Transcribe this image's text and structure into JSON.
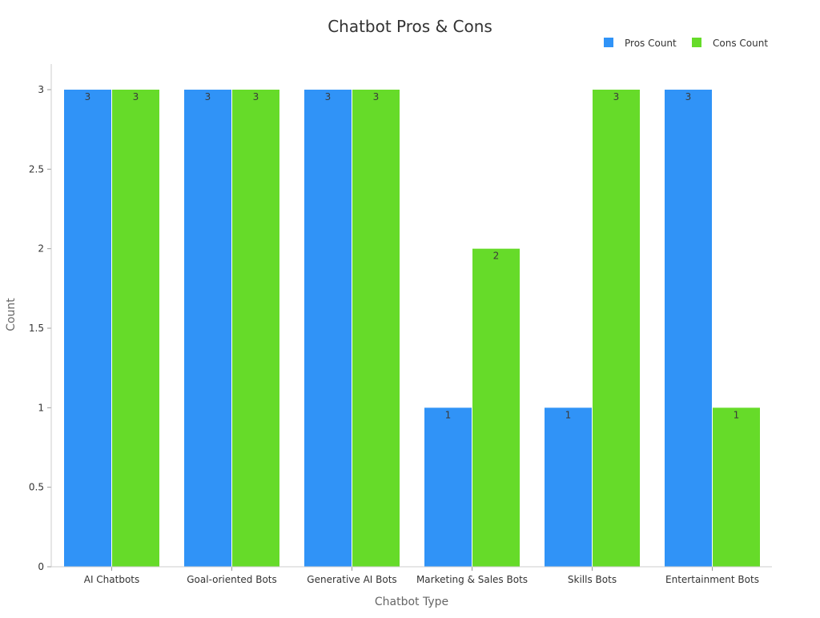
{
  "chart_data": {
    "type": "bar",
    "title": "Chatbot Pros & Cons",
    "xlabel": "Chatbot Type",
    "ylabel": "Count",
    "categories": [
      "AI Chatbots",
      "Goal-oriented Bots",
      "Generative AI Bots",
      "Marketing & Sales Bots",
      "Skills Bots",
      "Entertainment Bots"
    ],
    "series": [
      {
        "name": "Pros Count",
        "values": [
          3,
          3,
          3,
          1,
          1,
          3
        ],
        "color": "#3093f7"
      },
      {
        "name": "Cons Count",
        "values": [
          3,
          3,
          3,
          2,
          3,
          1
        ],
        "color": "#66db29"
      }
    ],
    "ylim": [
      0,
      3
    ],
    "yticks": [
      "0",
      "0.5",
      "1",
      "1.5",
      "2",
      "2.5",
      "3"
    ],
    "grid": false,
    "legend_position": "top-right",
    "data_labels": true
  }
}
